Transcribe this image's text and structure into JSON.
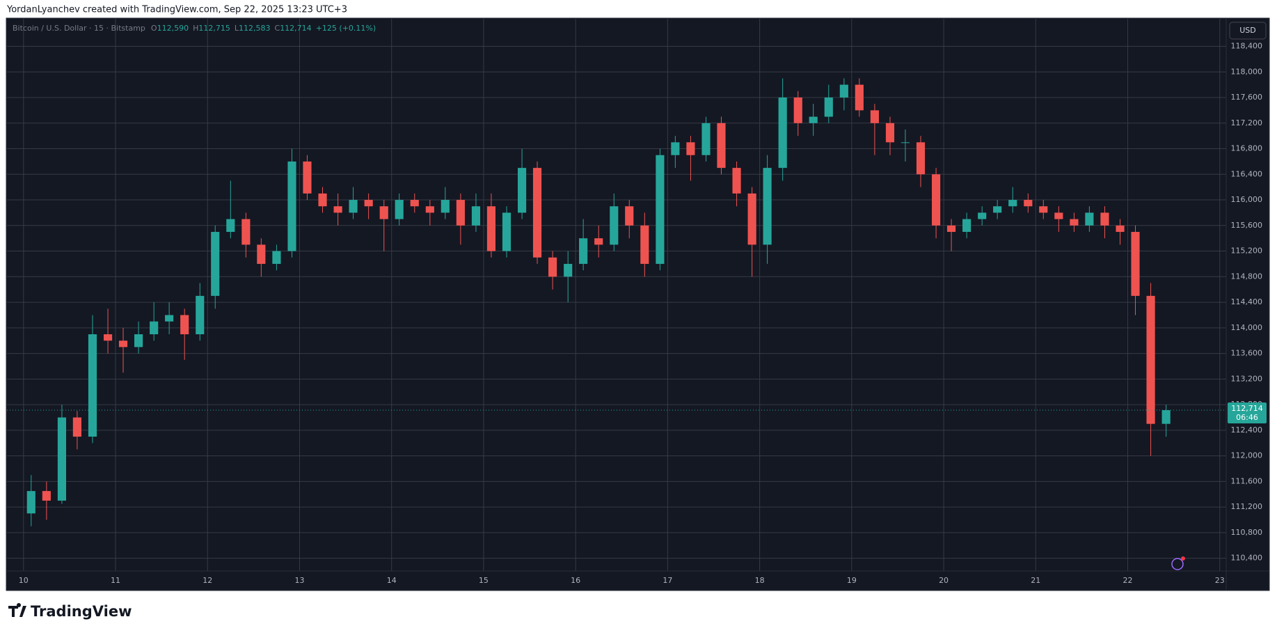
{
  "header": {
    "text": "YordanLyanchev created with TradingView.com, Sep 22, 2025 13:23 UTC+3"
  },
  "brand": "TradingView",
  "chart_data": {
    "type": "candlestick",
    "legend": {
      "symbol": "Bitcoin / U.S. Dollar · 15 · Bitstamp",
      "items": [
        {
          "label": "O",
          "value": "112,590"
        },
        {
          "label": "H",
          "value": "112,715"
        },
        {
          "label": "L",
          "value": "112,583"
        },
        {
          "label": "C",
          "value": "112,714"
        }
      ],
      "change": "+125 (+0.11%)"
    },
    "currency": "USD",
    "last_price": {
      "value": 112714,
      "label": "112,714"
    },
    "countdown": "06:46",
    "up_color": "#26a69a",
    "down_color": "#ef5350",
    "grid": true,
    "xlim": [
      9.82,
      23.07
    ],
    "xticks": [
      10,
      11,
      12,
      13,
      14,
      15,
      16,
      17,
      18,
      19,
      20,
      21,
      22,
      23
    ],
    "ylim": [
      110200,
      118830
    ],
    "yticks": [
      {
        "value": 110400,
        "label": "110,400"
      },
      {
        "value": 110800,
        "label": "110,800"
      },
      {
        "value": 111200,
        "label": "111,200"
      },
      {
        "value": 111600,
        "label": "111,600"
      },
      {
        "value": 112000,
        "label": "112,000"
      },
      {
        "value": 112400,
        "label": "112,400"
      },
      {
        "value": 112800,
        "label": "112,800"
      },
      {
        "value": 113200,
        "label": "113,200"
      },
      {
        "value": 113600,
        "label": "113,600"
      },
      {
        "value": 114000,
        "label": "114,000"
      },
      {
        "value": 114400,
        "label": "114,400"
      },
      {
        "value": 114800,
        "label": "114,800"
      },
      {
        "value": 115200,
        "label": "115,200"
      },
      {
        "value": 115600,
        "label": "115,600"
      },
      {
        "value": 116000,
        "label": "116,000"
      },
      {
        "value": 116400,
        "label": "116,400"
      },
      {
        "value": 116800,
        "label": "116,800"
      },
      {
        "value": 117200,
        "label": "117,200"
      },
      {
        "value": 117600,
        "label": "117,600"
      },
      {
        "value": 118000,
        "label": "118,000"
      },
      {
        "value": 118400,
        "label": "118,400"
      }
    ],
    "x": [
      10.083,
      10.25,
      10.417,
      10.583,
      10.75,
      10.917,
      11.083,
      11.25,
      11.417,
      11.583,
      11.75,
      11.917,
      12.083,
      12.25,
      12.417,
      12.583,
      12.75,
      12.917,
      13.083,
      13.25,
      13.417,
      13.583,
      13.75,
      13.917,
      14.083,
      14.25,
      14.417,
      14.583,
      14.75,
      14.917,
      15.083,
      15.25,
      15.417,
      15.583,
      15.75,
      15.917,
      16.083,
      16.25,
      16.417,
      16.583,
      16.75,
      16.917,
      17.083,
      17.25,
      17.417,
      17.583,
      17.75,
      17.917,
      18.083,
      18.25,
      18.417,
      18.583,
      18.75,
      18.917,
      19.083,
      19.25,
      19.417,
      19.583,
      19.75,
      19.917,
      20.083,
      20.25,
      20.417,
      20.583,
      20.75,
      20.917,
      21.083,
      21.25,
      21.417,
      21.583,
      21.75,
      21.917,
      22.083,
      22.25,
      22.417
    ],
    "open": [
      111100,
      111450,
      111300,
      112600,
      112300,
      113900,
      113800,
      113700,
      113900,
      114100,
      114200,
      113900,
      114500,
      115500,
      115700,
      115300,
      115000,
      115200,
      116600,
      116100,
      115900,
      115800,
      116000,
      115900,
      115700,
      116000,
      115900,
      115800,
      116000,
      115600,
      115900,
      115200,
      115800,
      116500,
      115100,
      114800,
      115000,
      115400,
      115300,
      115900,
      115600,
      115000,
      116700,
      116900,
      116700,
      117200,
      116500,
      116100,
      115300,
      116500,
      117600,
      117200,
      117300,
      117600,
      117800,
      117400,
      117200,
      116900,
      116900,
      116400,
      115600,
      115500,
      115700,
      115800,
      115900,
      116000,
      115900,
      115800,
      115700,
      115600,
      115800,
      115600,
      115500,
      114500,
      112500
    ],
    "high": [
      111700,
      111600,
      112800,
      112700,
      114200,
      114300,
      114000,
      114100,
      114400,
      114400,
      114300,
      114700,
      115600,
      116300,
      115800,
      115400,
      115300,
      116800,
      116700,
      116200,
      116100,
      116200,
      116100,
      116000,
      116100,
      116100,
      116000,
      116200,
      116100,
      116100,
      116100,
      115900,
      116800,
      116600,
      115200,
      115200,
      115700,
      115600,
      116100,
      116000,
      115800,
      116800,
      117000,
      117000,
      117300,
      117300,
      116600,
      116200,
      116700,
      117900,
      117700,
      117500,
      117800,
      117900,
      117900,
      117500,
      117300,
      117100,
      117000,
      116500,
      115700,
      115800,
      115900,
      116000,
      116200,
      116100,
      116000,
      115900,
      115800,
      115900,
      115900,
      115700,
      115600,
      114700,
      112800
    ],
    "low": [
      110900,
      111000,
      111250,
      112100,
      112200,
      113600,
      113300,
      113600,
      113800,
      113900,
      113500,
      113800,
      114300,
      115400,
      115100,
      114800,
      114900,
      115100,
      116000,
      115800,
      115600,
      115700,
      115700,
      115200,
      115600,
      115800,
      115600,
      115700,
      115300,
      115500,
      115100,
      115100,
      115700,
      115000,
      114600,
      114400,
      114900,
      115100,
      115200,
      115400,
      114800,
      114900,
      116500,
      116300,
      116600,
      116400,
      115900,
      114800,
      115000,
      116300,
      117000,
      117000,
      117200,
      117400,
      117300,
      116700,
      116700,
      116600,
      116200,
      115400,
      115200,
      115400,
      115600,
      115700,
      115800,
      115800,
      115700,
      115500,
      115500,
      115500,
      115400,
      115300,
      114200,
      112000,
      112300
    ],
    "close": [
      111450,
      111300,
      112600,
      112300,
      113900,
      113800,
      113700,
      113900,
      114100,
      114200,
      113900,
      114500,
      115500,
      115700,
      115300,
      115000,
      115200,
      116600,
      116100,
      115900,
      115800,
      116000,
      115900,
      115700,
      116000,
      115900,
      115800,
      116000,
      115600,
      115900,
      115200,
      115800,
      116500,
      115100,
      114800,
      115000,
      115400,
      115300,
      115900,
      115600,
      115000,
      116700,
      116900,
      116700,
      117200,
      116500,
      116100,
      115300,
      116500,
      117600,
      117200,
      117300,
      117600,
      117800,
      117400,
      117200,
      116900,
      116900,
      116400,
      115600,
      115500,
      115700,
      115800,
      115900,
      116000,
      115900,
      115800,
      115700,
      115600,
      115800,
      115600,
      115500,
      114500,
      112500,
      112714
    ]
  }
}
